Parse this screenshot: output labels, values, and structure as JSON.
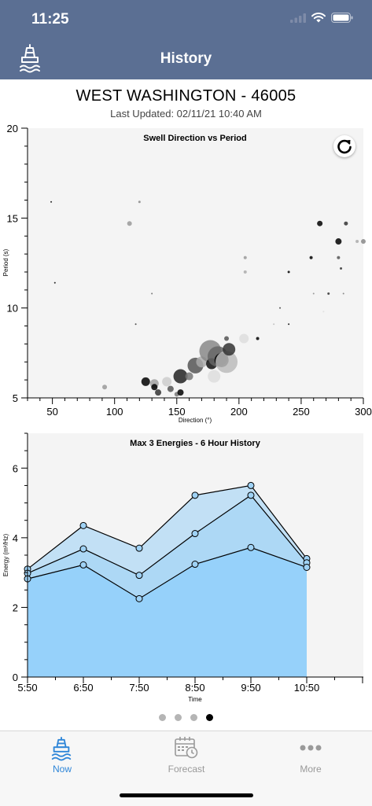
{
  "status_bar": {
    "time": "11:25"
  },
  "nav": {
    "title": "History",
    "left_icon": "buoy-icon"
  },
  "station": {
    "name": "WEST WASHINGTON - 46005",
    "last_updated": "Last Updated: 02/11/21 10:40 AM"
  },
  "refresh": {
    "icon": "refresh-icon"
  },
  "chart_data": [
    {
      "type": "scatter",
      "title": "Swell Direction vs Period",
      "xlabel": "Direction (°)",
      "ylabel": "Period (s)",
      "xlim": [
        30,
        300
      ],
      "ylim": [
        5,
        20
      ],
      "xticks": [
        50,
        100,
        150,
        200,
        250,
        300
      ],
      "yticks": [
        5,
        10,
        15,
        20
      ],
      "points": [
        {
          "x": 49,
          "y": 15.9,
          "r": 1,
          "c": "#000000"
        },
        {
          "x": 52,
          "y": 11.4,
          "r": 1,
          "c": "#000000"
        },
        {
          "x": 92,
          "y": 5.6,
          "r": 3,
          "c": "#999999"
        },
        {
          "x": 112,
          "y": 14.7,
          "r": 3,
          "c": "#999999"
        },
        {
          "x": 117,
          "y": 9.1,
          "r": 1,
          "c": "#333333"
        },
        {
          "x": 120,
          "y": 15.9,
          "r": 1.5,
          "c": "#888888"
        },
        {
          "x": 125,
          "y": 5.9,
          "r": 5.5,
          "c": "#000000"
        },
        {
          "x": 130,
          "y": 10.8,
          "r": 1,
          "c": "#666666"
        },
        {
          "x": 132,
          "y": 5.8,
          "r": 5.5,
          "c": "#a0a0a0"
        },
        {
          "x": 132,
          "y": 5.6,
          "r": 4,
          "c": "#000000"
        },
        {
          "x": 135,
          "y": 5.3,
          "r": 4,
          "c": "#333333"
        },
        {
          "x": 142,
          "y": 5.9,
          "r": 6,
          "c": "#cccccc"
        },
        {
          "x": 145,
          "y": 5.5,
          "r": 4,
          "c": "#555555"
        },
        {
          "x": 150,
          "y": 5.2,
          "r": 3,
          "c": "#777777"
        },
        {
          "x": 153,
          "y": 5.3,
          "r": 4,
          "c": "#000000"
        },
        {
          "x": 153,
          "y": 6.2,
          "r": 9,
          "c": "#222222"
        },
        {
          "x": 160,
          "y": 6.2,
          "r": 5,
          "c": "#777777"
        },
        {
          "x": 165,
          "y": 6.8,
          "r": 10,
          "c": "#555555"
        },
        {
          "x": 170,
          "y": 7.0,
          "r": 7,
          "c": "#aaaaaa"
        },
        {
          "x": 177,
          "y": 7.6,
          "r": 14,
          "c": "#888888"
        },
        {
          "x": 178,
          "y": 6.9,
          "r": 7,
          "c": "#111111"
        },
        {
          "x": 180,
          "y": 6.2,
          "r": 8,
          "c": "#dddddd"
        },
        {
          "x": 183,
          "y": 7.3,
          "r": 13,
          "c": "#666666"
        },
        {
          "x": 186,
          "y": 7.1,
          "r": 9,
          "c": "#000000"
        },
        {
          "x": 190,
          "y": 7.0,
          "r": 14,
          "c": "#bbbbbb"
        },
        {
          "x": 192,
          "y": 7.7,
          "r": 8,
          "c": "#333333"
        },
        {
          "x": 190,
          "y": 8.3,
          "r": 3,
          "c": "#555555"
        },
        {
          "x": 204,
          "y": 8.3,
          "r": 6,
          "c": "#dddddd"
        },
        {
          "x": 205,
          "y": 12.8,
          "r": 2,
          "c": "#999999"
        },
        {
          "x": 205,
          "y": 12.0,
          "r": 2,
          "c": "#aaaaaa"
        },
        {
          "x": 215,
          "y": 8.3,
          "r": 2,
          "c": "#000000"
        },
        {
          "x": 228,
          "y": 9.1,
          "r": 1,
          "c": "#bbbbbb"
        },
        {
          "x": 233,
          "y": 10.0,
          "r": 1,
          "c": "#333333"
        },
        {
          "x": 240,
          "y": 12.0,
          "r": 1.5,
          "c": "#000000"
        },
        {
          "x": 240,
          "y": 9.1,
          "r": 1,
          "c": "#000000"
        },
        {
          "x": 258,
          "y": 12.8,
          "r": 2,
          "c": "#000000"
        },
        {
          "x": 260,
          "y": 10.8,
          "r": 1,
          "c": "#888888"
        },
        {
          "x": 265,
          "y": 14.7,
          "r": 3.5,
          "c": "#000000"
        },
        {
          "x": 268,
          "y": 9.8,
          "r": 1,
          "c": "#dddddd"
        },
        {
          "x": 272,
          "y": 10.8,
          "r": 1.5,
          "c": "#333333"
        },
        {
          "x": 280,
          "y": 13.7,
          "r": 4,
          "c": "#000000"
        },
        {
          "x": 280,
          "y": 12.8,
          "r": 2,
          "c": "#555555"
        },
        {
          "x": 282,
          "y": 12.2,
          "r": 1.5,
          "c": "#333333"
        },
        {
          "x": 284,
          "y": 10.8,
          "r": 1,
          "c": "#777777"
        },
        {
          "x": 286,
          "y": 14.7,
          "r": 2.5,
          "c": "#333333"
        },
        {
          "x": 295,
          "y": 13.7,
          "r": 2,
          "c": "#aaaaaa"
        },
        {
          "x": 300,
          "y": 13.7,
          "r": 3,
          "c": "#888888"
        }
      ]
    },
    {
      "type": "area",
      "title": "Max 3 Energies - 6 Hour History",
      "xlabel": "Time",
      "ylabel": "Energy (m²/Hz)",
      "categories": [
        "5:50",
        "6:50",
        "7:50",
        "8:50",
        "9:50",
        "10:50"
      ],
      "ylim": [
        0,
        7
      ],
      "yticks": [
        0,
        2,
        4,
        6
      ],
      "series": [
        {
          "values": [
            3.1,
            4.35,
            3.7,
            5.22,
            5.5,
            3.4
          ],
          "fill": "#c2e0f5"
        },
        {
          "values": [
            2.98,
            3.68,
            2.92,
            4.12,
            5.22,
            3.28
          ],
          "fill": "#add8f5"
        },
        {
          "values": [
            2.82,
            3.22,
            2.25,
            3.24,
            3.72,
            3.15
          ],
          "fill": "#96d1fa"
        }
      ]
    }
  ],
  "pager": {
    "count": 4,
    "active_index": 3
  },
  "tabbar": {
    "items": [
      {
        "label": "Now",
        "icon": "buoy-icon",
        "active": true
      },
      {
        "label": "Forecast",
        "icon": "calendar-clock-icon",
        "active": false
      },
      {
        "label": "More",
        "icon": "more-dots-icon",
        "active": false
      }
    ]
  },
  "colors": {
    "nav_bg": "#5b6f93",
    "accent": "#2f86d8",
    "area_fill": "#96d1fa",
    "plot_bg": "#f4f4f4"
  }
}
